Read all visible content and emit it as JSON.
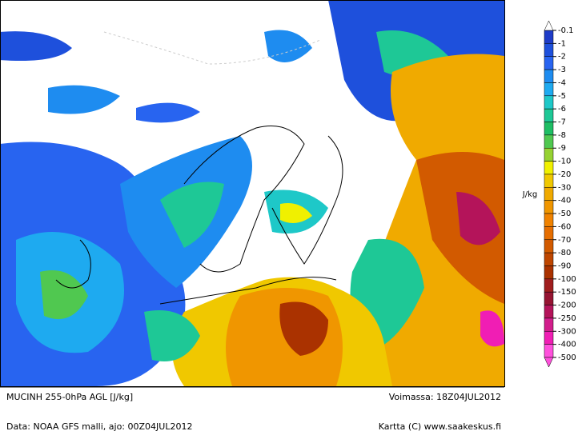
{
  "header": {
    "title": "MUCINH 255-0hPa AGL [J/kg]",
    "valid": "Voimassa: 18Z04JUL2012",
    "source": "Data: NOAA GFS malli, ajo: 00Z04JUL2012",
    "credit": "Kartta (C) www.saakeskus.fi"
  },
  "legend": {
    "unit": "J/kg",
    "labels": [
      "-0.1",
      "-1",
      "-2",
      "-3",
      "-4",
      "-5",
      "-6",
      "-7",
      "-8",
      "-9",
      "-10",
      "-20",
      "-30",
      "-40",
      "-50",
      "-60",
      "-70",
      "-80",
      "-90",
      "-100",
      "-150",
      "-200",
      "-250",
      "-300",
      "-400",
      "-500"
    ],
    "colors": [
      "#1e3cc8",
      "#1e50dc",
      "#2864f0",
      "#1e8cf0",
      "#1eaaf0",
      "#1ec8c8",
      "#1ec896",
      "#1ebe64",
      "#50c850",
      "#96d232",
      "#f0f000",
      "#f0c800",
      "#f0aa00",
      "#f09600",
      "#f08200",
      "#e66e00",
      "#d25a00",
      "#be4600",
      "#aa3200",
      "#a01e1e",
      "#961432",
      "#b4145a",
      "#d21e8c",
      "#f01eb4",
      "#ff50dc"
    ]
  }
}
